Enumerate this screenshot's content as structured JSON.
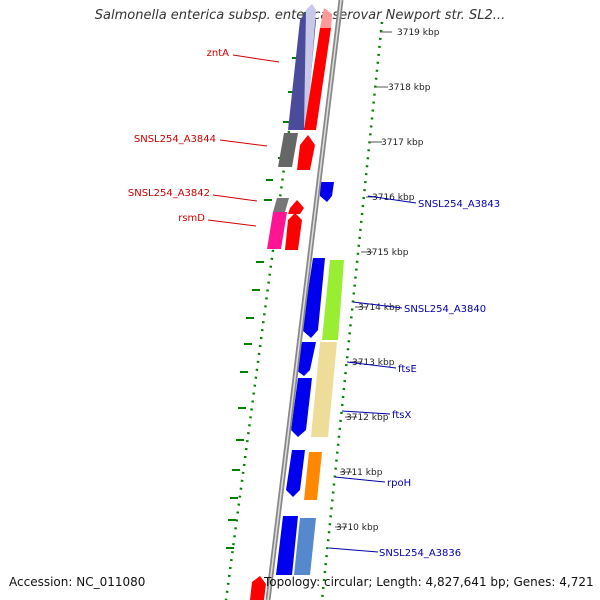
{
  "title": "Salmonella enterica subsp. enterica serovar Newport str. SL2...",
  "footer": {
    "accession": "Accession: NC_011080",
    "topology": "Topology: circular; Length: 4,827,641 bp; Genes: 4,721"
  },
  "colors": {
    "reverse_label": "#cc0000",
    "forward_label": "#0000aa",
    "gc_track": "#008000",
    "backbone": "#999999"
  },
  "ticks": [
    "3719 kbp",
    "3718 kbp",
    "3717 kbp",
    "3716 kbp",
    "3715 kbp",
    "3714 kbp",
    "3713 kbp",
    "3712 kbp",
    "3711 kbp",
    "3710 kbp"
  ],
  "reverse_genes": [
    "zntA",
    "SNSL254_A3844",
    "SNSL254_A3842",
    "rsmD"
  ],
  "forward_genes": [
    "SNSL254_A3843",
    "SNSL254_A3840",
    "ftsE",
    "ftsX",
    "rpoH",
    "SNSL254_A3836"
  ]
}
